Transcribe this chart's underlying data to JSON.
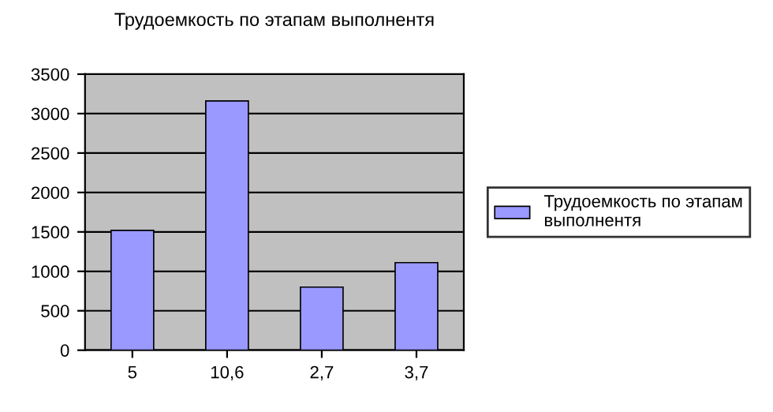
{
  "chart_data": {
    "type": "bar",
    "title": "Трудоемкость по этапам выполнентя",
    "categories": [
      "5",
      "10,6",
      "2,7",
      "3,7"
    ],
    "series": [
      {
        "name": "Трудоемкость по этапам выполнентя",
        "color": "#9999ff",
        "values": [
          1520,
          3160,
          800,
          1110
        ]
      }
    ],
    "ylim": [
      0,
      3500
    ],
    "yticks": [
      0,
      500,
      1000,
      1500,
      2000,
      2500,
      3000,
      3500
    ],
    "grid": "y",
    "legend": "right"
  }
}
